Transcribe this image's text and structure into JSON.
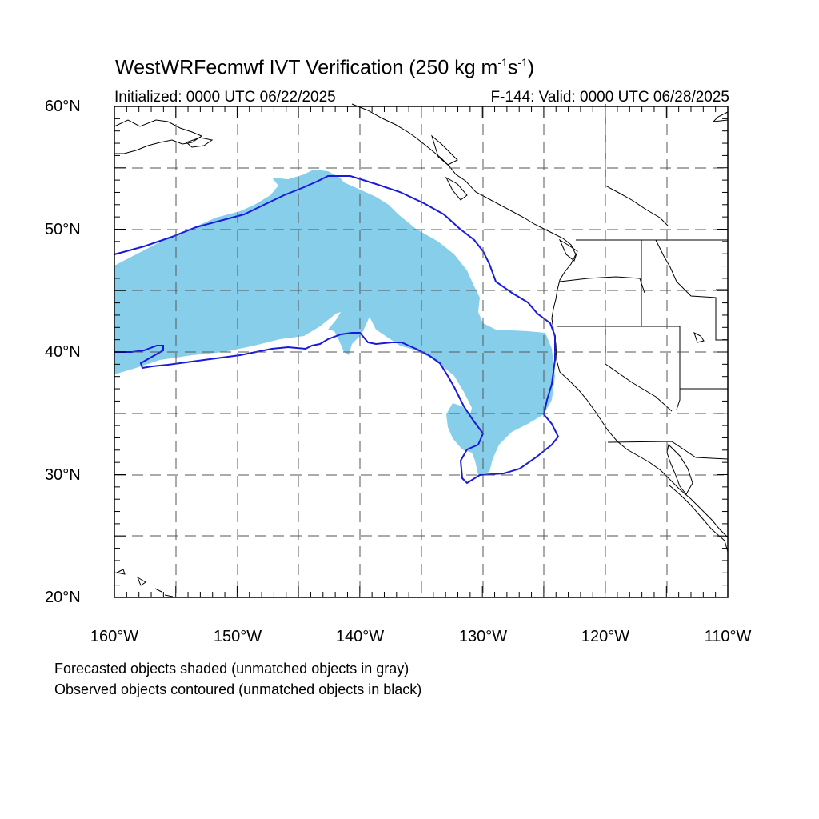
{
  "title": {
    "prefix": "WestWRFecmwf IVT Verification (250 kg m",
    "exp1": "-1",
    "mid": "s",
    "exp2": "-1",
    "suffix": ")"
  },
  "initialized": "Initialized: 0000 UTC 06/22/2025",
  "valid": "F-144: Valid: 0000 UTC 06/28/2025",
  "lat_labels": [
    "60°N",
    "50°N",
    "40°N",
    "30°N",
    "20°N"
  ],
  "lon_labels": [
    "160°W",
    "150°W",
    "140°W",
    "130°W",
    "120°W",
    "110°W"
  ],
  "legend": [
    "Forecasted objects shaded (unmatched objects in gray)",
    "Observed objects contoured (unmatched objects in black)"
  ],
  "colors": {
    "forecast_fill": "#87ceeb",
    "observed_contour": "#1a1adb",
    "coastline": "#000000",
    "grid": "#555555"
  }
}
